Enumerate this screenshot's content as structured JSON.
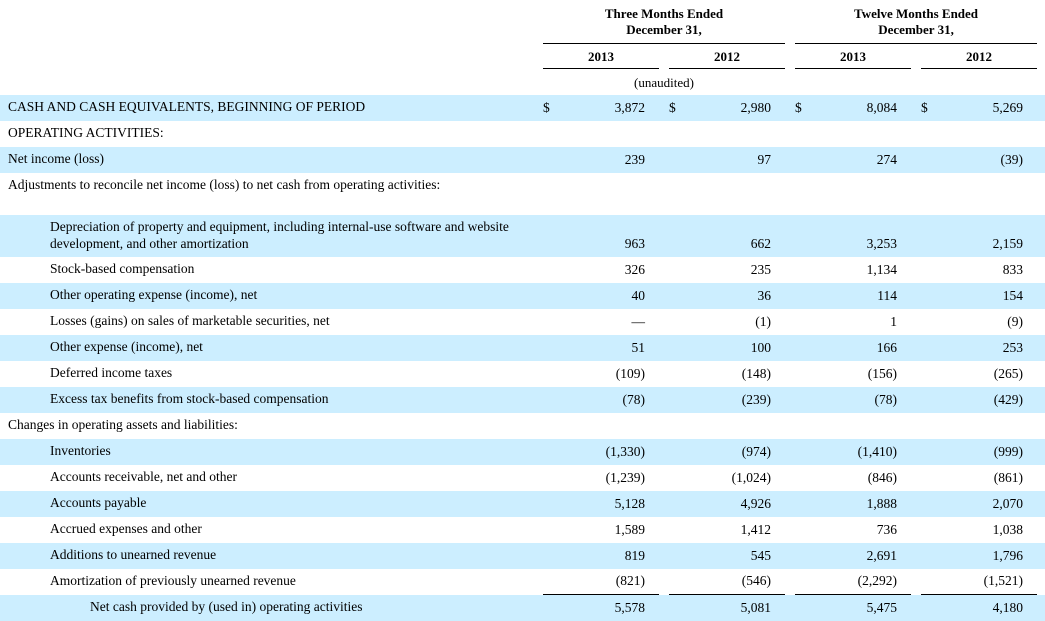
{
  "doc": {
    "currency_symbol": "$",
    "header": {
      "groups": [
        "Three Months Ended\nDecember 31,",
        "Twelve Months Ended\nDecember 31,"
      ],
      "years": [
        "2013",
        "2012",
        "2013",
        "2012"
      ],
      "note": "(unaudited)"
    },
    "rows": [
      {
        "type": "data",
        "label": "CASH AND CASH EQUIVALENTS, BEGINNING OF PERIOD",
        "indent": 0,
        "shaded": true,
        "dollar": true,
        "values": [
          "3,872",
          "2,980",
          "8,084",
          "5,269"
        ]
      },
      {
        "type": "section",
        "label": "OPERATING ACTIVITIES:",
        "indent": 0,
        "shaded": false
      },
      {
        "type": "data",
        "label": "Net income (loss)",
        "indent": 0,
        "shaded": true,
        "values": [
          "239",
          "97",
          "274",
          "(39)"
        ]
      },
      {
        "type": "section",
        "label": "Adjustments to reconcile net income (loss) to net cash from operating activities:",
        "indent": 0,
        "shaded": false
      },
      {
        "type": "spacer",
        "shaded": false
      },
      {
        "type": "data",
        "label": "Depreciation of property and equipment, including internal-use software and website development, and other amortization",
        "indent": 1,
        "shaded": true,
        "tall": true,
        "values": [
          "963",
          "662",
          "3,253",
          "2,159"
        ]
      },
      {
        "type": "data",
        "label": "Stock-based compensation",
        "indent": 1,
        "shaded": false,
        "values": [
          "326",
          "235",
          "1,134",
          "833"
        ]
      },
      {
        "type": "data",
        "label": "Other operating expense (income), net",
        "indent": 1,
        "shaded": true,
        "values": [
          "40",
          "36",
          "114",
          "154"
        ]
      },
      {
        "type": "data",
        "label": "Losses (gains) on sales of marketable securities, net",
        "indent": 1,
        "shaded": false,
        "values": [
          "—",
          "(1)",
          "1",
          "(9)"
        ]
      },
      {
        "type": "data",
        "label": "Other expense (income), net",
        "indent": 1,
        "shaded": true,
        "values": [
          "51",
          "100",
          "166",
          "253"
        ]
      },
      {
        "type": "data",
        "label": "Deferred income taxes",
        "indent": 1,
        "shaded": false,
        "values": [
          "(109)",
          "(148)",
          "(156)",
          "(265)"
        ]
      },
      {
        "type": "data",
        "label": "Excess tax benefits from stock-based compensation",
        "indent": 1,
        "shaded": true,
        "values": [
          "(78)",
          "(239)",
          "(78)",
          "(429)"
        ]
      },
      {
        "type": "section",
        "label": "Changes in operating assets and liabilities:",
        "indent": 0,
        "shaded": false
      },
      {
        "type": "data",
        "label": "Inventories",
        "indent": 1,
        "shaded": true,
        "values": [
          "(1,330)",
          "(974)",
          "(1,410)",
          "(999)"
        ]
      },
      {
        "type": "data",
        "label": "Accounts receivable, net and other",
        "indent": 1,
        "shaded": false,
        "values": [
          "(1,239)",
          "(1,024)",
          "(846)",
          "(861)"
        ]
      },
      {
        "type": "data",
        "label": "Accounts payable",
        "indent": 1,
        "shaded": true,
        "values": [
          "5,128",
          "4,926",
          "1,888",
          "2,070"
        ]
      },
      {
        "type": "data",
        "label": "Accrued expenses and other",
        "indent": 1,
        "shaded": false,
        "values": [
          "1,589",
          "1,412",
          "736",
          "1,038"
        ]
      },
      {
        "type": "data",
        "label": "Additions to unearned revenue",
        "indent": 1,
        "shaded": true,
        "values": [
          "819",
          "545",
          "2,691",
          "1,796"
        ]
      },
      {
        "type": "data",
        "label": "Amortization of previously unearned revenue",
        "indent": 1,
        "shaded": false,
        "rule_below": true,
        "values": [
          "(821)",
          "(546)",
          "(2,292)",
          "(1,521)"
        ]
      },
      {
        "type": "data",
        "label": "Net cash provided by (used in) operating activities",
        "indent": 2,
        "shaded": true,
        "values": [
          "5,578",
          "5,081",
          "5,475",
          "4,180"
        ]
      }
    ]
  },
  "colors": {
    "row_highlight": "#CCEEFF",
    "rule": "#000000",
    "text": "#000000"
  }
}
